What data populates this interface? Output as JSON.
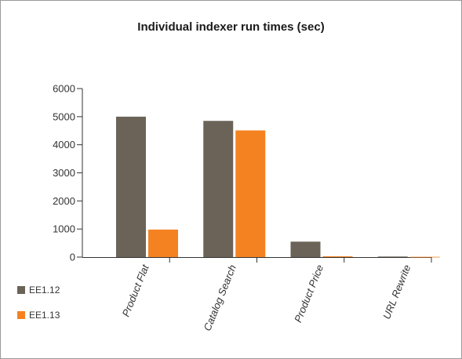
{
  "chart_data": {
    "type": "bar",
    "title": "Individual indexer run times (sec)",
    "categories": [
      "Product Flat",
      "Catalog Search",
      "Product Price",
      "URL Rewrite"
    ],
    "series": [
      {
        "name": "EE1.12",
        "color": "#6b6358",
        "values": [
          5000,
          4850,
          550,
          20
        ]
      },
      {
        "name": "EE1.13",
        "color": "#f58220",
        "values": [
          980,
          4510,
          30,
          10
        ]
      }
    ],
    "ylim": [
      0,
      6000
    ],
    "yticks": [
      "0",
      "1000",
      "2000",
      "3000",
      "4000",
      "5000",
      "6000"
    ],
    "legend_position": "bottom-left",
    "grid": false
  }
}
